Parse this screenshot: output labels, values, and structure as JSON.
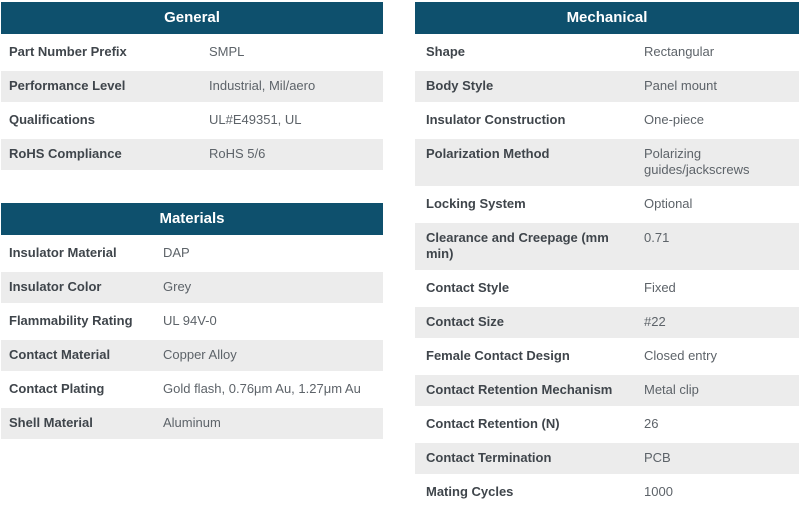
{
  "colors": {
    "header_bg": "#0e506d",
    "header_text": "#ffffff",
    "row_alt_bg": "#ececec",
    "label_text": "#3f454b",
    "value_text": "#5d6369"
  },
  "tables": {
    "general": {
      "title": "General",
      "rows": [
        {
          "label": "Part Number Prefix",
          "value": "SMPL"
        },
        {
          "label": "Performance Level",
          "value": "Industrial, Mil/aero"
        },
        {
          "label": "Qualifications",
          "value": "UL#E49351, UL"
        },
        {
          "label": "RoHS Compliance",
          "value": "RoHS 5/6"
        }
      ]
    },
    "materials": {
      "title": "Materials",
      "rows": [
        {
          "label": "Insulator Material",
          "value": "DAP"
        },
        {
          "label": "Insulator Color",
          "value": "Grey"
        },
        {
          "label": "Flammability Rating",
          "value": "UL 94V-0"
        },
        {
          "label": "Contact Material",
          "value": "Copper Alloy"
        },
        {
          "label": "Contact Plating",
          "value": "Gold flash, 0.76μm Au, 1.27μm Au"
        },
        {
          "label": "Shell Material",
          "value": "Aluminum"
        }
      ]
    },
    "mechanical": {
      "title": "Mechanical",
      "rows": [
        {
          "label": "Shape",
          "value": "Rectangular"
        },
        {
          "label": "Body Style",
          "value": "Panel mount"
        },
        {
          "label": "Insulator Construction",
          "value": "One-piece"
        },
        {
          "label": "Polarization Method",
          "value": "Polarizing\nguides/jackscrews"
        },
        {
          "label": "Locking System",
          "value": "Optional"
        },
        {
          "label": "Clearance and Creepage (mm\nmin)",
          "value": "0.71"
        },
        {
          "label": "Contact Style",
          "value": "Fixed"
        },
        {
          "label": "Contact Size",
          "value": "#22"
        },
        {
          "label": "Female Contact Design",
          "value": "Closed entry"
        },
        {
          "label": "Contact Retention Mechanism",
          "value": "Metal clip"
        },
        {
          "label": "Contact Retention (N)",
          "value": "26"
        },
        {
          "label": "Contact Termination",
          "value": "PCB"
        },
        {
          "label": "Mating Cycles",
          "value": "1000"
        }
      ]
    }
  }
}
